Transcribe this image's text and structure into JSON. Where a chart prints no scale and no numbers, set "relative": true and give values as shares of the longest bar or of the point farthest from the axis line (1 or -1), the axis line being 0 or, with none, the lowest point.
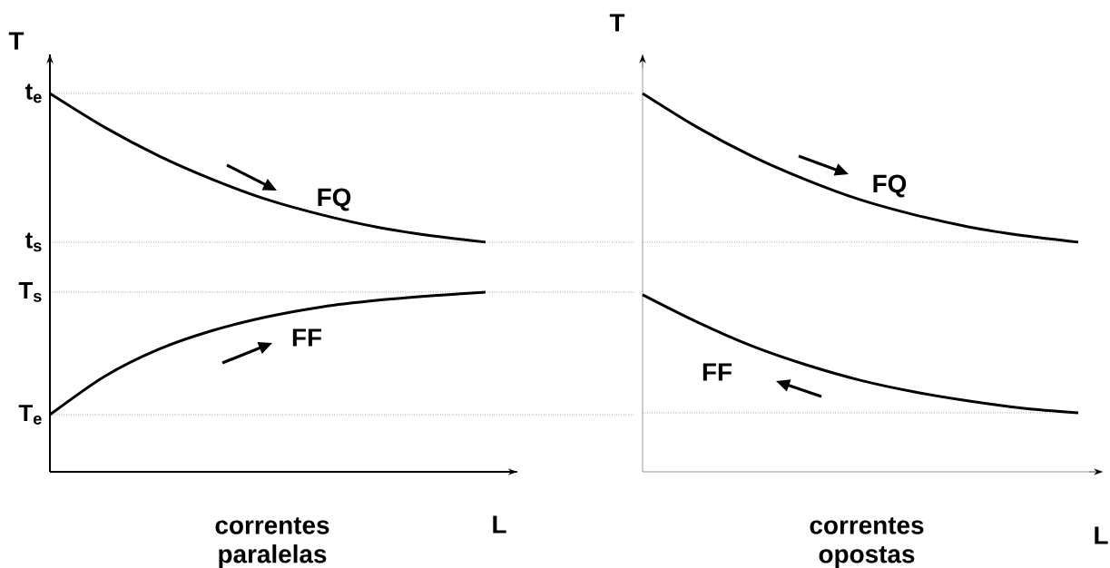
{
  "chart_data": [
    {
      "type": "line",
      "relative": true,
      "line_style": "solid",
      "ylabel": "T",
      "xlabel": "correntes paralelas",
      "annotations": [
        "L"
      ],
      "categories": [
        null,
        null,
        null,
        null,
        null,
        null,
        null,
        null,
        null
      ],
      "series": [
        {
          "name": "FQ",
          "color": "#000000",
          "values": [
            1.0,
            0.911,
            0.835,
            0.772,
            0.719,
            0.679,
            0.647,
            0.624,
            0.607
          ]
        },
        {
          "name": "FF",
          "color": "#000000",
          "values": [
            0.151,
            0.252,
            0.324,
            0.374,
            0.41,
            0.436,
            0.453,
            0.465,
            0.475
          ]
        }
      ],
      "ref_lines": [
        {
          "axis": "y",
          "value": 1.0,
          "label": "t$_{e}$",
          "line_style": "dotted"
        },
        {
          "axis": "y",
          "value": 0.607,
          "label": "t$_{s}$",
          "line_style": "dotted"
        },
        {
          "axis": "y",
          "value": 0.475,
          "label": "T$_{s}$",
          "line_style": "dotted"
        },
        {
          "axis": "y",
          "value": 0.151,
          "label": "T$_{e}$",
          "line_style": "dotted"
        }
      ]
    },
    {
      "type": "line",
      "relative": true,
      "line_style": "solid",
      "ylabel": "T",
      "xlabel": "correntes opostas",
      "annotations": [
        "L"
      ],
      "categories": [
        null,
        null,
        null,
        null,
        null,
        null,
        null,
        null,
        null
      ],
      "series": [
        {
          "name": "FQ",
          "color": "#000000",
          "values": [
            1.0,
            0.911,
            0.835,
            0.772,
            0.719,
            0.679,
            0.647,
            0.624,
            0.607
          ]
        },
        {
          "name": "FF",
          "color": "#000000",
          "values": [
            0.468,
            0.396,
            0.333,
            0.283,
            0.242,
            0.211,
            0.187,
            0.168,
            0.156
          ]
        }
      ],
      "ref_lines": [
        {
          "axis": "y",
          "value": 0.607,
          "line_style": "dotted"
        },
        {
          "axis": "y",
          "value": 0.156,
          "line_style": "dotted"
        }
      ]
    }
  ]
}
